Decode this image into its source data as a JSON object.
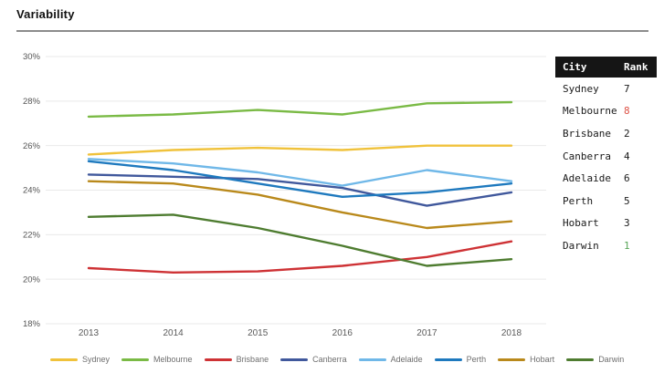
{
  "header": {
    "title": "Variability"
  },
  "chart_data": {
    "type": "line",
    "title": "Variability",
    "x": [
      2013,
      2014,
      2015,
      2016,
      2017,
      2018
    ],
    "xlabel": "",
    "ylabel": "",
    "ylim": [
      18,
      30
    ],
    "yticks": [
      30,
      28,
      26,
      24,
      22,
      20,
      18
    ],
    "ytick_labels": [
      "30%",
      "28%",
      "26%",
      "24%",
      "22%",
      "20%",
      "18%"
    ],
    "grid": "horizontal",
    "gridline_color": "#e9e9e9",
    "axis_text_color": "#555555",
    "legend_position": "bottom",
    "series": [
      {
        "name": "Sydney",
        "color": "#F0C23B",
        "values": [
          25.6,
          25.8,
          25.9,
          25.8,
          26.0,
          26.0
        ]
      },
      {
        "name": "Melbourne",
        "color": "#7ABA45",
        "values": [
          27.3,
          27.4,
          27.6,
          27.4,
          27.9,
          27.95
        ]
      },
      {
        "name": "Brisbane",
        "color": "#CE3235",
        "values": [
          20.5,
          20.3,
          20.35,
          20.6,
          21.0,
          21.7
        ]
      },
      {
        "name": "Canberra",
        "color": "#40589C",
        "values": [
          24.7,
          24.6,
          24.5,
          24.1,
          23.3,
          23.9
        ]
      },
      {
        "name": "Adelaide",
        "color": "#70B8E8",
        "values": [
          25.4,
          25.2,
          24.8,
          24.2,
          24.9,
          24.4
        ]
      },
      {
        "name": "Perth",
        "color": "#1E79BE",
        "values": [
          25.3,
          24.9,
          24.3,
          23.7,
          23.9,
          24.3
        ]
      },
      {
        "name": "Hobart",
        "color": "#B9891B",
        "values": [
          24.4,
          24.3,
          23.8,
          23.0,
          22.3,
          22.6
        ]
      },
      {
        "name": "Darwin",
        "color": "#4E7C30",
        "values": [
          22.8,
          22.9,
          22.3,
          21.5,
          20.6,
          20.9
        ]
      }
    ]
  },
  "table": {
    "headers": [
      "City",
      "Rank"
    ],
    "default_rank_color": "#1a1a1a",
    "rows": [
      {
        "city": "Sydney",
        "rank": "7",
        "rank_color": "#1a1a1a"
      },
      {
        "city": "Melbourne",
        "rank": "8",
        "rank_color": "#dd5145"
      },
      {
        "city": "Brisbane",
        "rank": "2",
        "rank_color": "#1a1a1a"
      },
      {
        "city": "Canberra",
        "rank": "4",
        "rank_color": "#1a1a1a"
      },
      {
        "city": "Adelaide",
        "rank": "6",
        "rank_color": "#1a1a1a"
      },
      {
        "city": "Perth",
        "rank": "5",
        "rank_color": "#1a1a1a"
      },
      {
        "city": "Hobart",
        "rank": "3",
        "rank_color": "#1a1a1a"
      },
      {
        "city": "Darwin",
        "rank": "1",
        "rank_color": "#56a456"
      }
    ]
  }
}
